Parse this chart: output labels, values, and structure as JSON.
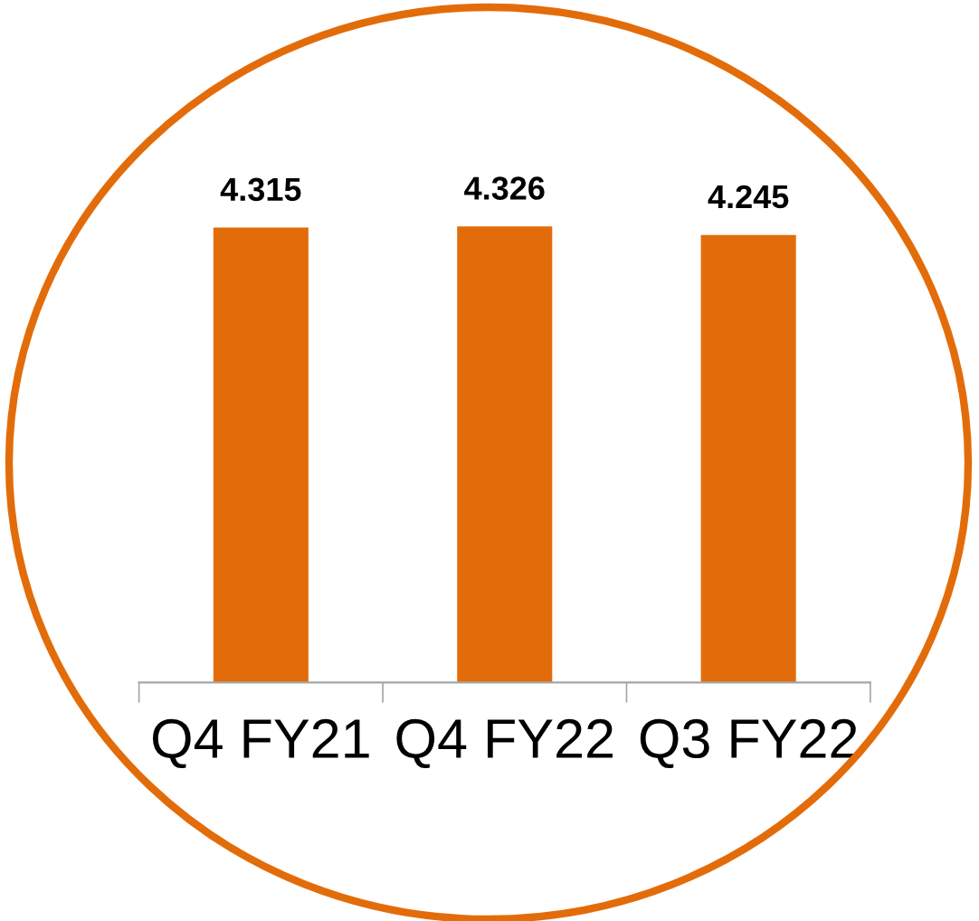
{
  "chart_data": {
    "type": "bar",
    "categories": [
      "Q4 FY21",
      "Q4 FY22",
      "Q3 FY22"
    ],
    "values": [
      4.315,
      4.326,
      4.245
    ],
    "color": "#e36c0a",
    "data_labels": true,
    "tick_labels": "x",
    "grid": false,
    "legend": false
  }
}
